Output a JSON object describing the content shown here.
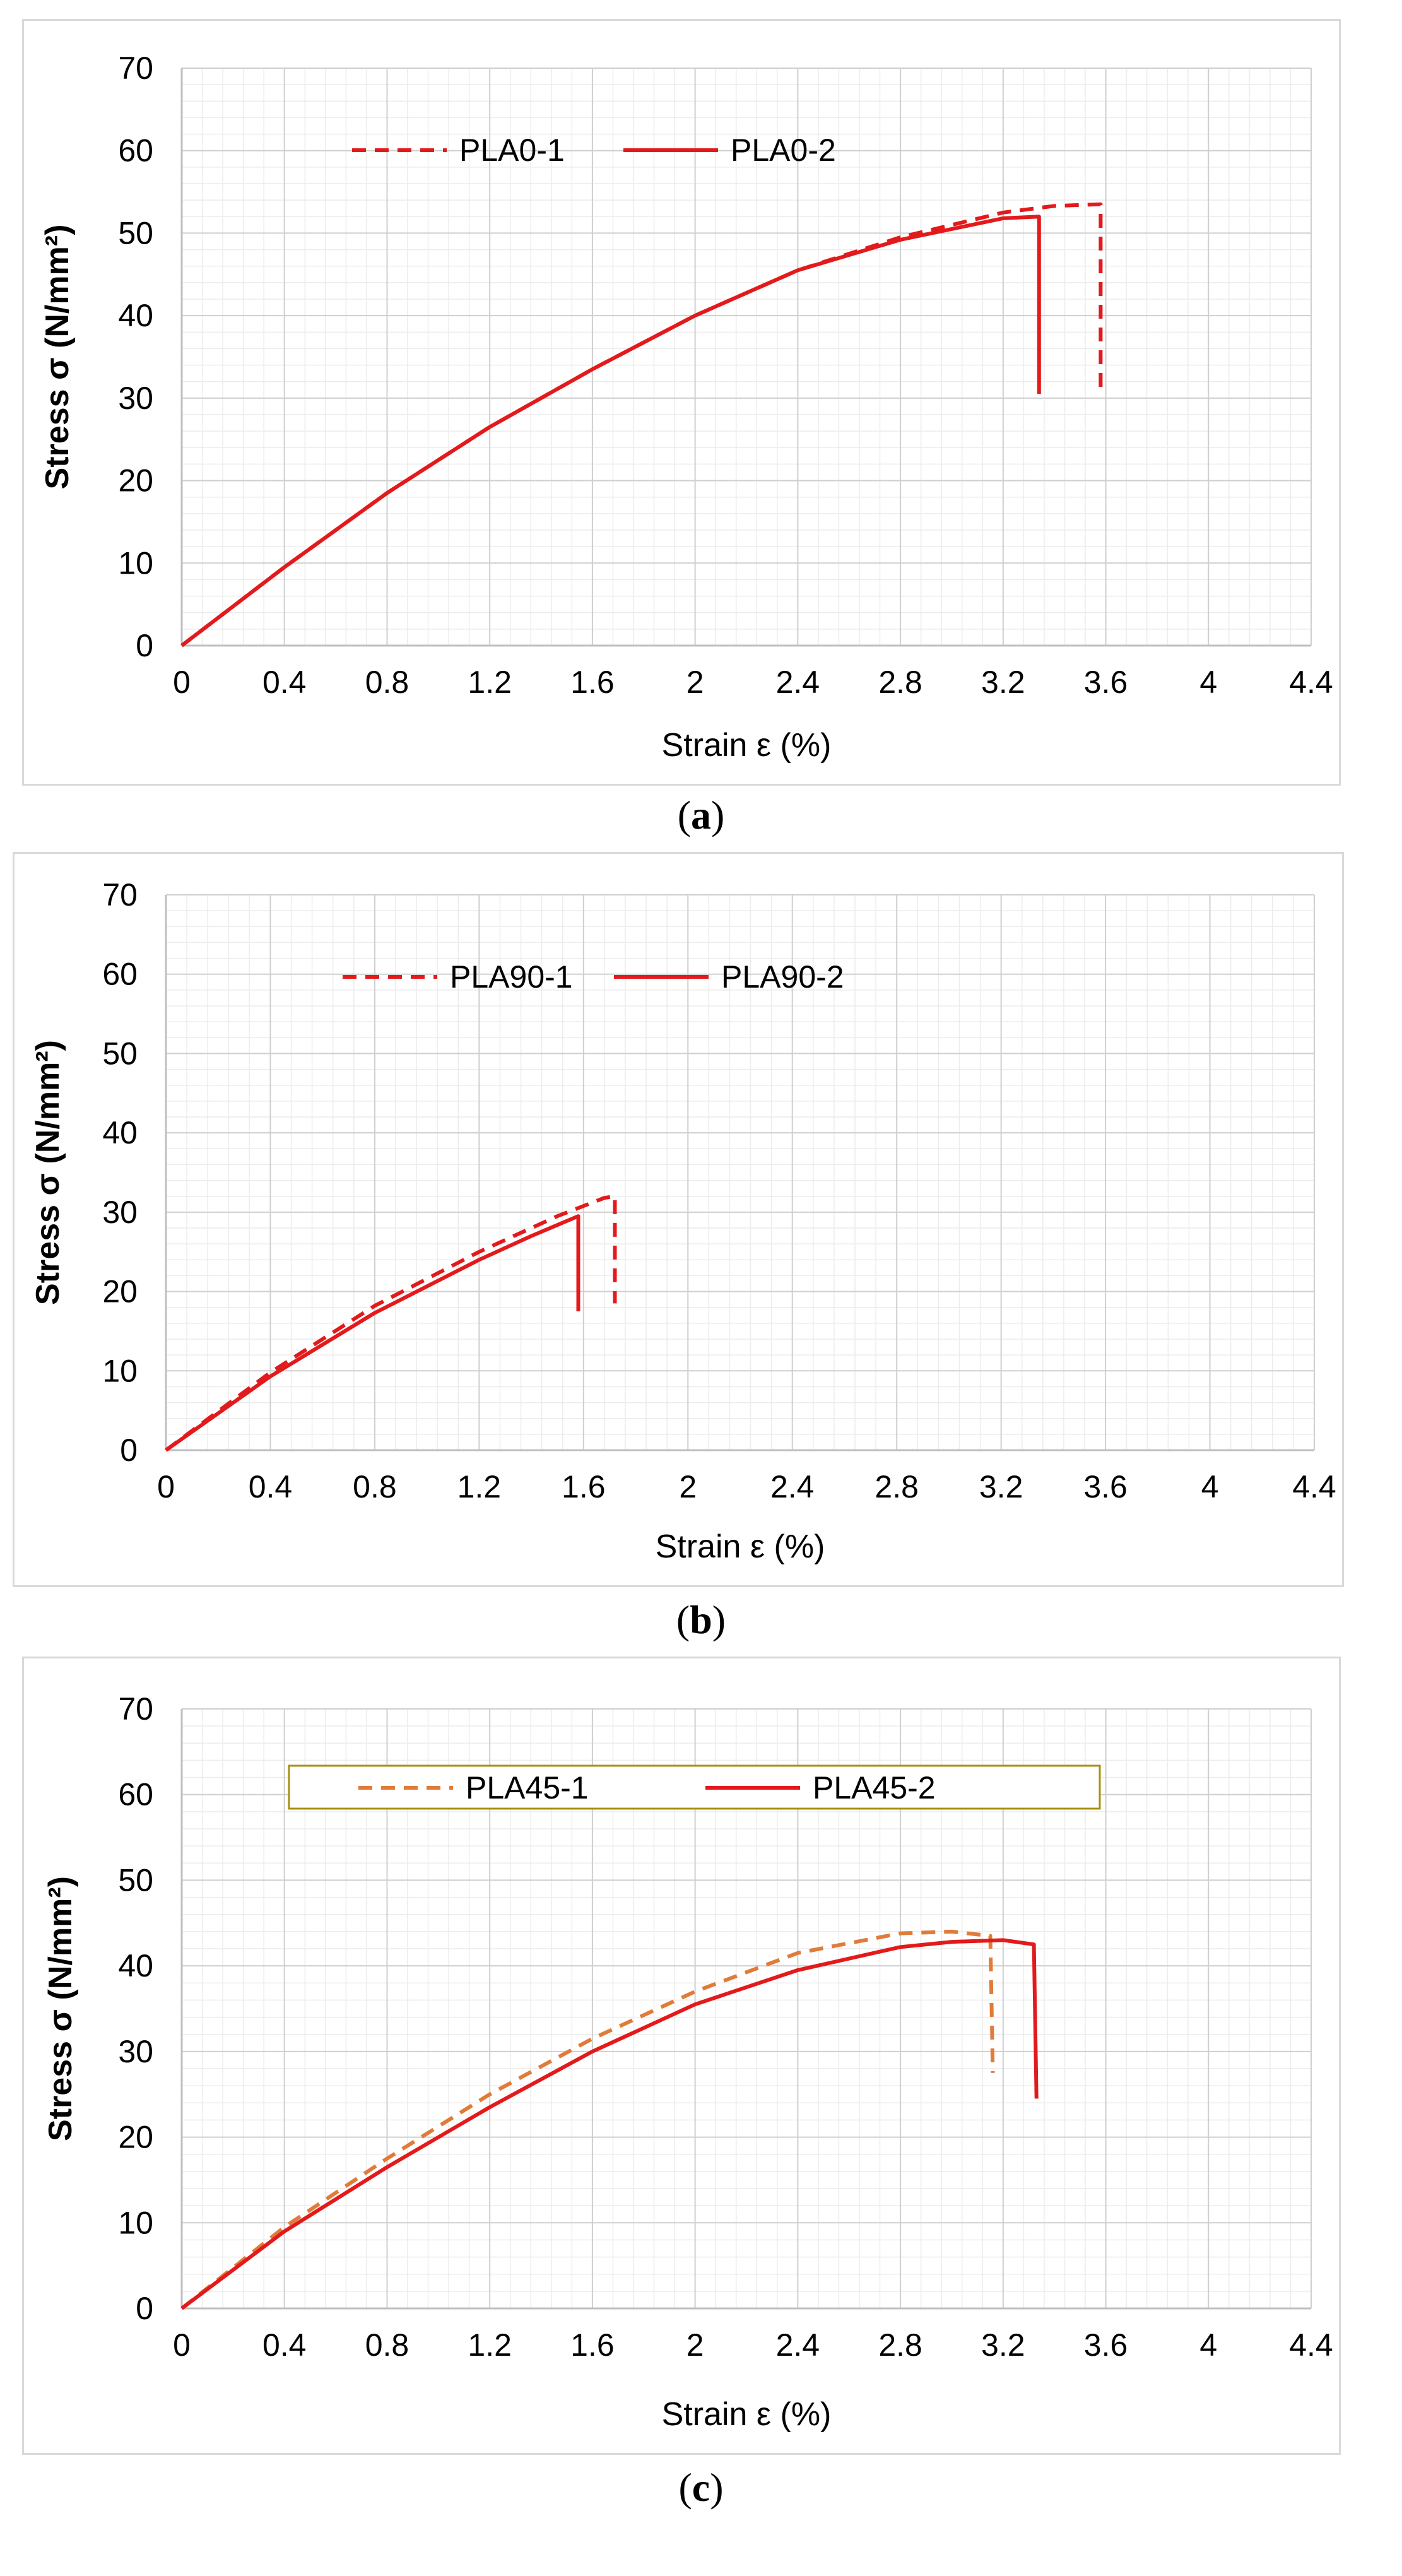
{
  "chart_data": [
    {
      "type": "line",
      "panel": "a",
      "caption_open": "(",
      "caption_letter": "a",
      "caption_close": ")",
      "xlabel": "Strain ε (%)",
      "ylabel": "Stress σ (N/mm²)",
      "xlim": [
        0,
        4.4
      ],
      "ylim": [
        0,
        70
      ],
      "xticks": [
        "0",
        "0.4",
        "0.8",
        "1.2",
        "1.6",
        "2",
        "2.4",
        "2.8",
        "3.2",
        "3.6",
        "4",
        "4.4"
      ],
      "yticks": [
        "0",
        "10",
        "20",
        "30",
        "40",
        "50",
        "60",
        "70"
      ],
      "grid": true,
      "legend": "top-left",
      "legend_boxed": false,
      "series": [
        {
          "name": "PLA0-1",
          "color": "#e31a1c",
          "style": "dashed",
          "x": [
            0,
            0.4,
            0.8,
            1.2,
            1.6,
            2.0,
            2.4,
            2.8,
            3.2,
            3.4,
            3.58,
            3.58
          ],
          "y": [
            0,
            9.5,
            18.5,
            26.5,
            33.5,
            40,
            45.5,
            49.5,
            52.5,
            53.3,
            53.5,
            31
          ]
        },
        {
          "name": "PLA0-2",
          "color": "#e31a1c",
          "style": "solid",
          "x": [
            0,
            0.4,
            0.8,
            1.2,
            1.6,
            2.0,
            2.4,
            2.8,
            3.2,
            3.34,
            3.34
          ],
          "y": [
            0,
            9.5,
            18.5,
            26.5,
            33.5,
            40,
            45.5,
            49.2,
            51.8,
            52,
            30.5
          ]
        }
      ]
    },
    {
      "type": "line",
      "panel": "b",
      "caption_open": "(",
      "caption_letter": "b",
      "caption_close": ")",
      "xlabel": "Strain ε (%)",
      "ylabel": "Stress σ (N/mm²)",
      "xlim": [
        0,
        4.4
      ],
      "ylim": [
        0,
        70
      ],
      "xticks": [
        "0",
        "0.4",
        "0.8",
        "1.2",
        "1.6",
        "2",
        "2.4",
        "2.8",
        "3.2",
        "3.6",
        "4",
        "4.4"
      ],
      "yticks": [
        "0",
        "10",
        "20",
        "30",
        "40",
        "50",
        "60",
        "70"
      ],
      "grid": true,
      "legend": "top-left",
      "legend_boxed": false,
      "series": [
        {
          "name": "PLA90-1",
          "color": "#e31a1c",
          "style": "dashed",
          "x": [
            0,
            0.4,
            0.8,
            1.2,
            1.5,
            1.68,
            1.72,
            1.72
          ],
          "y": [
            0,
            9.8,
            18.2,
            25,
            29.5,
            31.8,
            32,
            18.5
          ]
        },
        {
          "name": "PLA90-2",
          "color": "#e31a1c",
          "style": "solid",
          "x": [
            0,
            0.4,
            0.8,
            1.2,
            1.4,
            1.58,
            1.58
          ],
          "y": [
            0,
            9.3,
            17.3,
            24,
            27,
            29.5,
            17.5
          ]
        }
      ]
    },
    {
      "type": "line",
      "panel": "c",
      "caption_open": "(",
      "caption_letter": "c",
      "caption_close": ")",
      "xlabel": "Strain ε (%)",
      "ylabel": "Stress σ (N/mm²)",
      "xlim": [
        0,
        4.4
      ],
      "ylim": [
        0,
        70
      ],
      "xticks": [
        "0",
        "0.4",
        "0.8",
        "1.2",
        "1.6",
        "2",
        "2.4",
        "2.8",
        "3.2",
        "3.6",
        "4",
        "4.4"
      ],
      "yticks": [
        "0",
        "10",
        "20",
        "30",
        "40",
        "50",
        "60",
        "70"
      ],
      "grid": true,
      "legend": "top-center",
      "legend_boxed": true,
      "series": [
        {
          "name": "PLA45-1",
          "color": "#e07b39",
          "style": "dashed",
          "x": [
            0,
            0.4,
            0.8,
            1.2,
            1.6,
            2.0,
            2.4,
            2.8,
            3.0,
            3.15,
            3.16
          ],
          "y": [
            0,
            9.5,
            17.5,
            25,
            31.5,
            37,
            41.5,
            43.8,
            44,
            43.5,
            27.5
          ]
        },
        {
          "name": "PLA45-2",
          "color": "#e31a1c",
          "style": "solid",
          "x": [
            0,
            0.4,
            0.8,
            1.2,
            1.6,
            2.0,
            2.4,
            2.8,
            3.0,
            3.2,
            3.32,
            3.33
          ],
          "y": [
            0,
            9,
            16.5,
            23.5,
            30,
            35.5,
            39.5,
            42.2,
            42.8,
            43,
            42.5,
            24.5
          ]
        }
      ]
    }
  ]
}
